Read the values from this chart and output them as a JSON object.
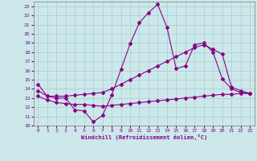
{
  "xlabel": "Windchill (Refroidissement éolien,°C)",
  "bg_color": "#cce8ea",
  "grid_color": "#aacccc",
  "line_color": "#880088",
  "xlim": [
    -0.5,
    23.5
  ],
  "ylim": [
    10,
    23.5
  ],
  "xticks": [
    0,
    1,
    2,
    3,
    4,
    5,
    6,
    7,
    8,
    9,
    10,
    11,
    12,
    13,
    14,
    15,
    16,
    17,
    18,
    19,
    20,
    21,
    22,
    23
  ],
  "yticks": [
    10,
    11,
    12,
    13,
    14,
    15,
    16,
    17,
    18,
    19,
    20,
    21,
    22,
    23
  ],
  "line1_x": [
    0,
    1,
    2,
    3,
    4,
    5,
    6,
    7,
    8,
    9,
    10,
    11,
    12,
    13,
    14,
    15,
    16,
    17,
    18,
    19,
    20,
    21,
    22,
    23
  ],
  "line1_y": [
    14.5,
    13.2,
    13.0,
    13.0,
    11.7,
    11.6,
    10.4,
    11.1,
    13.3,
    16.1,
    18.9,
    21.2,
    22.3,
    23.2,
    20.7,
    16.2,
    16.5,
    18.8,
    19.0,
    18.0,
    15.1,
    14.0,
    13.6,
    13.5
  ],
  "line2_x": [
    0,
    1,
    2,
    3,
    4,
    5,
    6,
    7,
    8,
    9,
    10,
    11,
    12,
    13,
    14,
    15,
    16,
    17,
    18,
    19,
    20,
    21,
    22,
    23
  ],
  "line2_y": [
    13.8,
    13.2,
    13.2,
    13.2,
    13.3,
    13.4,
    13.5,
    13.6,
    14.0,
    14.5,
    15.0,
    15.5,
    16.0,
    16.5,
    17.0,
    17.5,
    18.0,
    18.5,
    18.8,
    18.3,
    17.8,
    14.2,
    13.8,
    13.5
  ],
  "line3_x": [
    0,
    1,
    2,
    3,
    4,
    5,
    6,
    7,
    8,
    9,
    10,
    11,
    12,
    13,
    14,
    15,
    16,
    17,
    18,
    19,
    20,
    21,
    22,
    23
  ],
  "line3_y": [
    13.2,
    12.8,
    12.5,
    12.4,
    12.3,
    12.3,
    12.2,
    12.1,
    12.2,
    12.3,
    12.4,
    12.5,
    12.6,
    12.7,
    12.8,
    12.9,
    13.0,
    13.1,
    13.2,
    13.3,
    13.4,
    13.4,
    13.5,
    13.5
  ]
}
